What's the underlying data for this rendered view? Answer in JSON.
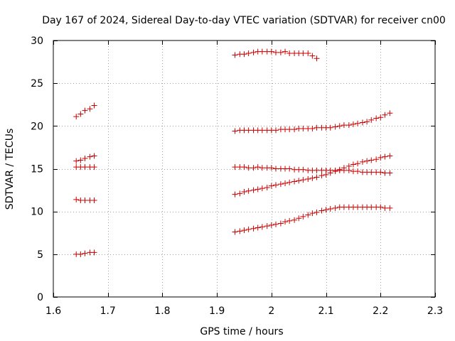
{
  "chart_data": {
    "type": "scatter",
    "title": "Day 167 of 2024, Sidereal Day-to-day VTEC variation (SDTVAR) for receiver cn00",
    "xlabel": "GPS time / hours",
    "ylabel": "SDTVAR / TECUs",
    "xlim": [
      1.6,
      2.3
    ],
    "ylim": [
      0,
      30
    ],
    "x_ticks": [
      1.6,
      1.7,
      1.8,
      1.9,
      2.0,
      2.1,
      2.2,
      2.3
    ],
    "x_tick_labels": [
      "1.6",
      "1.7",
      "1.8",
      "1.9",
      "2",
      "2.1",
      "2.2",
      "2.3"
    ],
    "y_ticks": [
      0,
      5,
      10,
      15,
      20,
      25,
      30
    ],
    "y_tick_labels": [
      "0",
      "5",
      "10",
      "15",
      "20",
      "25",
      "30"
    ],
    "grid": true,
    "marker": "+",
    "marker_color": "#cc0000",
    "series": [
      {
        "name": "s1",
        "x": [
          1.642,
          1.65,
          1.658,
          1.667,
          1.675
        ],
        "y": [
          5.0,
          5.0,
          5.1,
          5.2,
          5.2
        ]
      },
      {
        "name": "s2",
        "x": [
          1.642,
          1.65,
          1.658,
          1.667,
          1.675
        ],
        "y": [
          11.4,
          11.3,
          11.3,
          11.3,
          11.3
        ]
      },
      {
        "name": "s3",
        "x": [
          1.642,
          1.65,
          1.658,
          1.667,
          1.675
        ],
        "y": [
          15.2,
          15.2,
          15.2,
          15.2,
          15.2
        ]
      },
      {
        "name": "s4",
        "x": [
          1.642,
          1.65,
          1.658,
          1.667,
          1.675
        ],
        "y": [
          15.9,
          16.0,
          16.2,
          16.4,
          16.5
        ]
      },
      {
        "name": "s5",
        "x": [
          1.642,
          1.65,
          1.658,
          1.667,
          1.675
        ],
        "y": [
          21.1,
          21.4,
          21.8,
          22.0,
          22.4
        ]
      },
      {
        "name": "s6",
        "x": [
          1.933,
          1.942,
          1.95,
          1.958,
          1.967,
          1.975,
          1.983,
          1.992,
          2.0,
          2.008,
          2.017,
          2.025,
          2.033,
          2.042,
          2.05,
          2.058,
          2.067,
          2.075,
          2.083
        ],
        "y": [
          28.3,
          28.4,
          28.4,
          28.5,
          28.6,
          28.7,
          28.7,
          28.7,
          28.7,
          28.6,
          28.6,
          28.7,
          28.5,
          28.5,
          28.5,
          28.5,
          28.5,
          28.2,
          27.9
        ]
      },
      {
        "name": "s7",
        "x": [
          1.933,
          1.942,
          1.95,
          1.958,
          1.967,
          1.975,
          1.983,
          1.992,
          2.0,
          2.008,
          2.017,
          2.025,
          2.033,
          2.042,
          2.05,
          2.058,
          2.067,
          2.075,
          2.083,
          2.092,
          2.1,
          2.108,
          2.117,
          2.125,
          2.133,
          2.142,
          2.15,
          2.158,
          2.167,
          2.175,
          2.183,
          2.192,
          2.2,
          2.208,
          2.217
        ],
        "y": [
          7.6,
          7.7,
          7.8,
          7.9,
          8.0,
          8.1,
          8.2,
          8.3,
          8.4,
          8.5,
          8.6,
          8.8,
          8.9,
          9.0,
          9.2,
          9.4,
          9.6,
          9.8,
          9.9,
          10.1,
          10.2,
          10.3,
          10.4,
          10.5,
          10.5,
          10.5,
          10.5,
          10.5,
          10.5,
          10.5,
          10.5,
          10.5,
          10.5,
          10.4,
          10.4
        ]
      },
      {
        "name": "s8",
        "x": [
          1.933,
          1.942,
          1.95,
          1.958,
          1.967,
          1.975,
          1.983,
          1.992,
          2.0,
          2.008,
          2.017,
          2.025,
          2.033,
          2.042,
          2.05,
          2.058,
          2.067,
          2.075,
          2.083,
          2.092,
          2.1,
          2.108,
          2.117,
          2.125,
          2.133,
          2.142,
          2.15,
          2.158,
          2.167,
          2.175,
          2.183,
          2.192,
          2.2,
          2.208,
          2.217
        ],
        "y": [
          12.0,
          12.1,
          12.3,
          12.4,
          12.5,
          12.6,
          12.7,
          12.8,
          13.0,
          13.1,
          13.2,
          13.3,
          13.4,
          13.5,
          13.6,
          13.7,
          13.8,
          13.9,
          14.0,
          14.2,
          14.3,
          14.5,
          14.7,
          14.9,
          15.1,
          15.3,
          15.5,
          15.6,
          15.8,
          15.9,
          16.0,
          16.1,
          16.3,
          16.4,
          16.5
        ]
      },
      {
        "name": "s9",
        "x": [
          1.933,
          1.942,
          1.95,
          1.958,
          1.967,
          1.975,
          1.983,
          1.992,
          2.0,
          2.008,
          2.017,
          2.025,
          2.033,
          2.042,
          2.05,
          2.058,
          2.067,
          2.075,
          2.083,
          2.092,
          2.1,
          2.108,
          2.117,
          2.125,
          2.133,
          2.142,
          2.15,
          2.158,
          2.167,
          2.175,
          2.183,
          2.192,
          2.2,
          2.208,
          2.217
        ],
        "y": [
          15.2,
          15.2,
          15.2,
          15.1,
          15.1,
          15.2,
          15.1,
          15.1,
          15.1,
          15.0,
          15.0,
          15.0,
          15.0,
          14.9,
          14.9,
          14.9,
          14.8,
          14.8,
          14.8,
          14.8,
          14.8,
          14.8,
          14.8,
          14.8,
          14.8,
          14.8,
          14.7,
          14.7,
          14.6,
          14.6,
          14.6,
          14.6,
          14.6,
          14.5,
          14.5
        ]
      },
      {
        "name": "s10",
        "x": [
          1.933,
          1.942,
          1.95,
          1.958,
          1.967,
          1.975,
          1.983,
          1.992,
          2.0,
          2.008,
          2.017,
          2.025,
          2.033,
          2.042,
          2.05,
          2.058,
          2.067,
          2.075,
          2.083,
          2.092,
          2.1,
          2.108,
          2.117,
          2.125,
          2.133,
          2.142,
          2.15,
          2.158,
          2.167,
          2.175,
          2.183,
          2.192,
          2.2,
          2.208,
          2.217
        ],
        "y": [
          19.4,
          19.5,
          19.5,
          19.5,
          19.5,
          19.5,
          19.5,
          19.5,
          19.5,
          19.5,
          19.6,
          19.6,
          19.6,
          19.6,
          19.7,
          19.7,
          19.7,
          19.7,
          19.8,
          19.8,
          19.8,
          19.8,
          19.9,
          20.0,
          20.1,
          20.1,
          20.2,
          20.3,
          20.4,
          20.5,
          20.7,
          20.9,
          21.0,
          21.3,
          21.5
        ]
      }
    ]
  }
}
